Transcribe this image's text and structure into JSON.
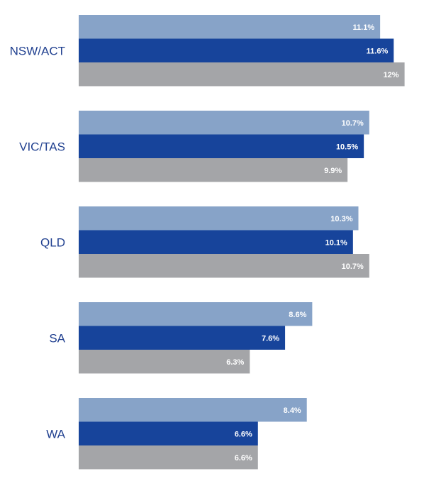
{
  "chart_data": {
    "type": "bar",
    "orientation": "horizontal",
    "title": "",
    "xlabel": "",
    "ylabel": "",
    "categories": [
      "NSW/ACT",
      "VIC/TAS",
      "QLD",
      "SA",
      "WA"
    ],
    "series": [
      {
        "color": "#87a3c8",
        "values": [
          11.1,
          10.7,
          10.3,
          8.6,
          8.4
        ],
        "labels": [
          "11.1%",
          "10.7%",
          "10.3%",
          "8.6%",
          "8.4%"
        ]
      },
      {
        "color": "#17449b",
        "values": [
          11.6,
          10.5,
          10.1,
          7.6,
          6.6
        ],
        "labels": [
          "11.6%",
          "10.5%",
          "10.1%",
          "7.6%",
          "6.6%"
        ]
      },
      {
        "color": "#a4a5a8",
        "values": [
          12,
          9.9,
          10.7,
          6.3,
          6.6
        ],
        "labels": [
          "12%",
          "9.9%",
          "10.7%",
          "6.3%",
          "6.6%"
        ]
      }
    ],
    "xlim": [
      0,
      12
    ],
    "grid": false,
    "legend": "none"
  }
}
